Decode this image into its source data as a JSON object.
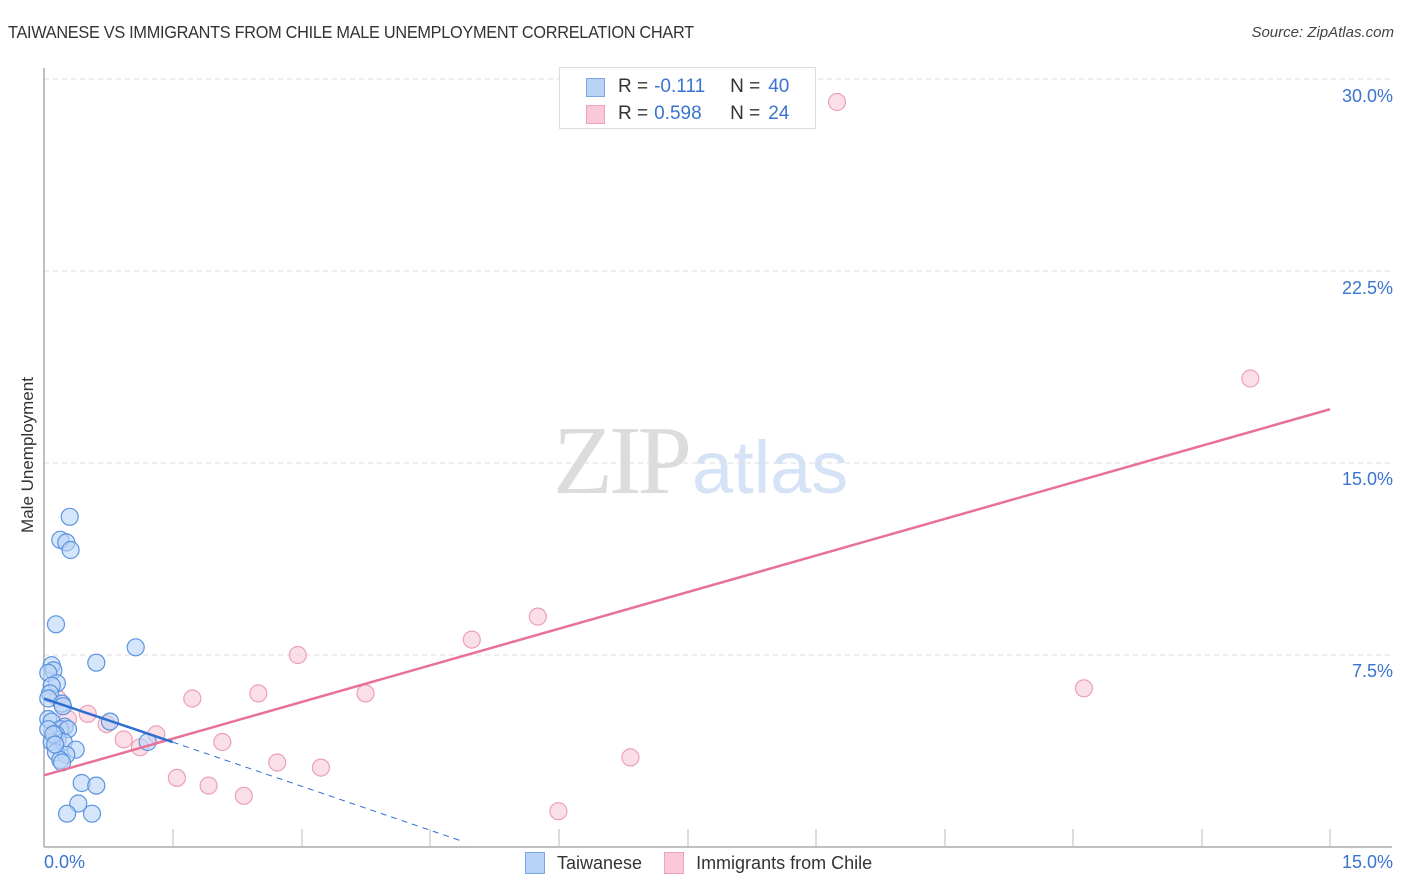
{
  "header": {
    "title": "TAIWANESE VS IMMIGRANTS FROM CHILE MALE UNEMPLOYMENT CORRELATION CHART",
    "source": "Source: ZipAtlas.com"
  },
  "watermark": {
    "part1": "ZIP",
    "part2": "atlas"
  },
  "axes": {
    "ylabel": "Male Unemployment",
    "y_ticks": [
      "30.0%",
      "22.5%",
      "15.0%",
      "7.5%"
    ],
    "x_ticks": [
      "0.0%",
      "15.0%"
    ]
  },
  "legend": {
    "rows": [
      {
        "r_label": "R =",
        "r_value": "-0.111",
        "n_label": "N =",
        "n_value": "40"
      },
      {
        "r_label": "R =",
        "r_value": "0.598",
        "n_label": "N =",
        "n_value": "24"
      }
    ],
    "bottom": [
      {
        "label": "Taiwanese"
      },
      {
        "label": "Immigrants from Chile"
      }
    ]
  },
  "colors": {
    "taiwanese_fill": "#b9d3f7",
    "taiwanese_stroke": "#5b93e0",
    "taiwanese_line": "#2f6fd2",
    "chile_fill": "#f9c9d7",
    "chile_stroke": "#eca0b8",
    "chile_line": "#e8719a",
    "tick_label": "#3a74d0"
  },
  "chart_data": {
    "type": "scatter",
    "title": "TAIWANESE VS IMMIGRANTS FROM CHILE MALE UNEMPLOYMENT CORRELATION CHART",
    "xlabel": "",
    "ylabel": "Male Unemployment",
    "xlim": [
      0,
      15
    ],
    "ylim": [
      0,
      31
    ],
    "x_ticks": [
      0,
      15
    ],
    "y_ticks": [
      7.5,
      15,
      22.5,
      30
    ],
    "grid": {
      "horizontal": true,
      "vertical": false,
      "style": "dashed"
    },
    "legend_position": "top-center",
    "series": [
      {
        "name": "Taiwanese",
        "R": -0.111,
        "N": 40,
        "trend": {
          "x0": 0,
          "y0": 5.8,
          "x1_solid": 1.5,
          "y1_solid": 4.1,
          "x1_dashed": 4.9,
          "y1_dashed": 0.2
        },
        "points": [
          [
            0.3,
            12.9
          ],
          [
            0.19,
            12.0
          ],
          [
            0.26,
            11.9
          ],
          [
            0.31,
            11.6
          ],
          [
            0.14,
            8.7
          ],
          [
            1.07,
            7.8
          ],
          [
            0.61,
            7.2
          ],
          [
            0.09,
            7.1
          ],
          [
            0.11,
            6.9
          ],
          [
            0.05,
            6.8
          ],
          [
            0.15,
            6.4
          ],
          [
            0.09,
            6.3
          ],
          [
            0.07,
            6.0
          ],
          [
            0.05,
            5.8
          ],
          [
            0.21,
            5.6
          ],
          [
            0.22,
            5.5
          ],
          [
            0.05,
            5.0
          ],
          [
            0.09,
            4.9
          ],
          [
            0.77,
            4.9
          ],
          [
            0.24,
            4.7
          ],
          [
            0.19,
            4.6
          ],
          [
            0.28,
            4.6
          ],
          [
            0.14,
            4.4
          ],
          [
            0.16,
            4.2
          ],
          [
            0.09,
            4.1
          ],
          [
            0.23,
            4.1
          ],
          [
            1.21,
            4.1
          ],
          [
            0.37,
            3.8
          ],
          [
            0.14,
            3.7
          ],
          [
            0.26,
            3.6
          ],
          [
            0.19,
            3.4
          ],
          [
            0.21,
            3.3
          ],
          [
            0.44,
            2.5
          ],
          [
            0.61,
            2.4
          ],
          [
            0.4,
            1.7
          ],
          [
            0.27,
            1.3
          ],
          [
            0.56,
            1.3
          ],
          [
            0.05,
            4.6
          ],
          [
            0.11,
            4.4
          ],
          [
            0.13,
            4.0
          ]
        ]
      },
      {
        "name": "Immigrants from Chile",
        "R": 0.598,
        "N": 24,
        "trend": {
          "x0": 0,
          "y0": 2.8,
          "x1": 15,
          "y1": 17.1
        },
        "points": [
          [
            9.25,
            29.1
          ],
          [
            14.07,
            18.3
          ],
          [
            5.76,
            9.0
          ],
          [
            4.99,
            8.1
          ],
          [
            2.96,
            7.5
          ],
          [
            1.73,
            5.8
          ],
          [
            2.5,
            6.0
          ],
          [
            3.75,
            6.0
          ],
          [
            12.13,
            6.2
          ],
          [
            0.16,
            5.8
          ],
          [
            0.51,
            5.2
          ],
          [
            0.28,
            5.0
          ],
          [
            0.73,
            4.8
          ],
          [
            1.31,
            4.4
          ],
          [
            0.93,
            4.2
          ],
          [
            2.08,
            4.1
          ],
          [
            1.12,
            3.9
          ],
          [
            2.72,
            3.3
          ],
          [
            3.23,
            3.1
          ],
          [
            6.84,
            3.5
          ],
          [
            1.55,
            2.7
          ],
          [
            1.92,
            2.4
          ],
          [
            2.33,
            2.0
          ],
          [
            6.0,
            1.4
          ]
        ]
      }
    ]
  }
}
